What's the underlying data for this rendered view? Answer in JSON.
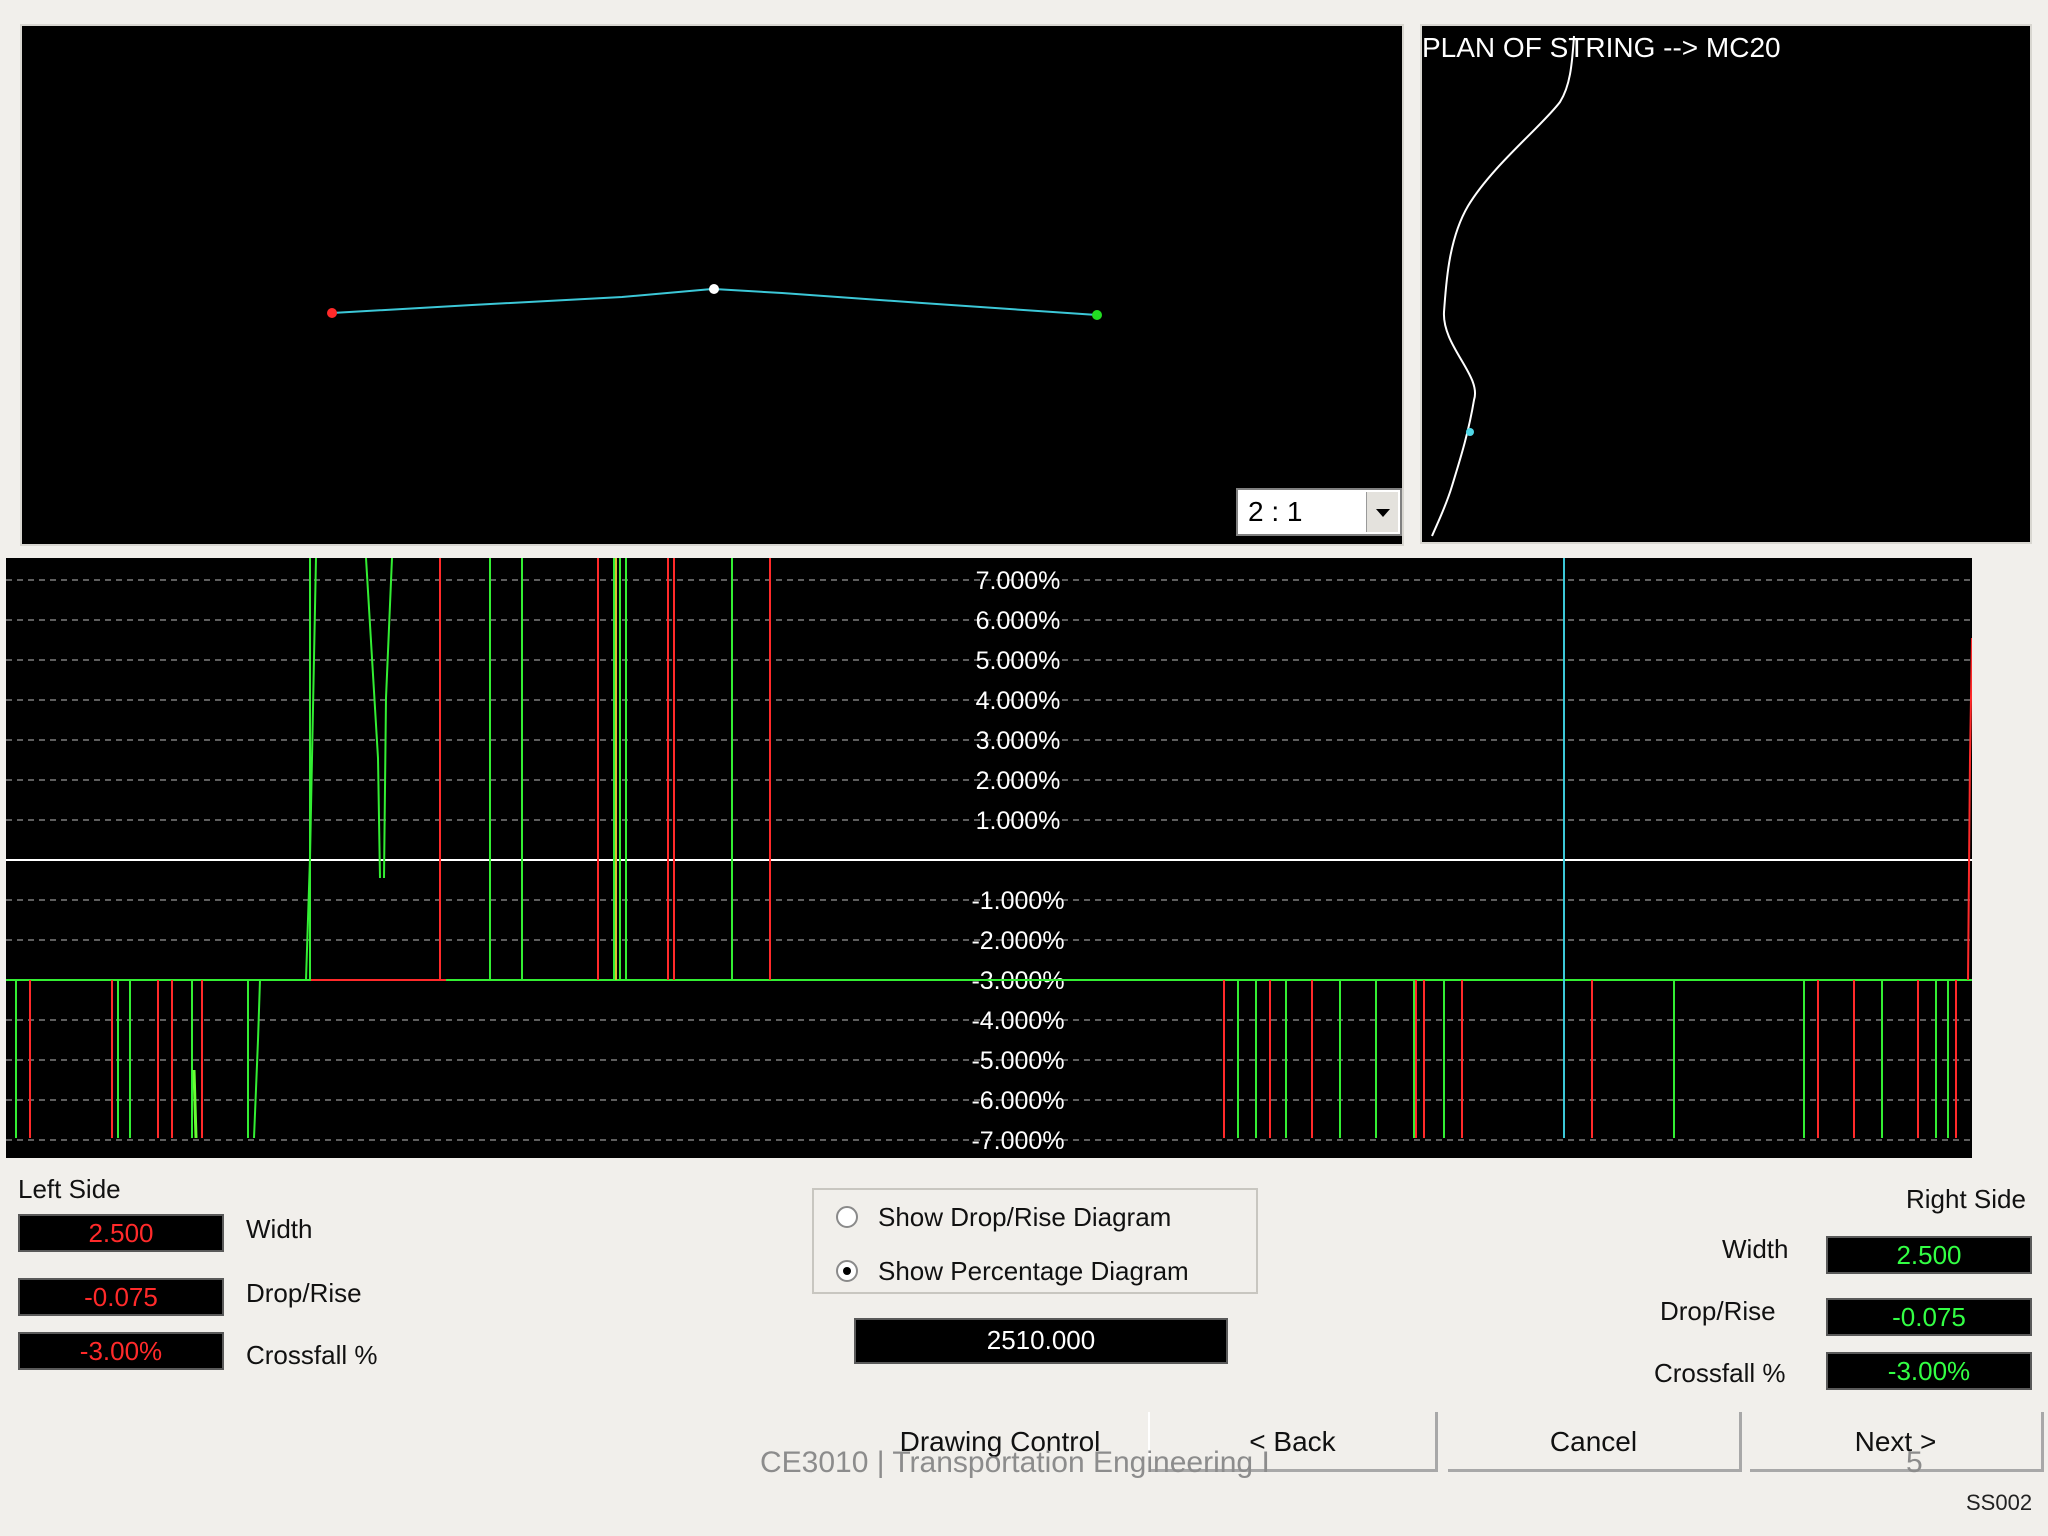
{
  "cross_section": {
    "scale_value": "2 : 1"
  },
  "plan": {
    "title": "PLAN OF STRING --> MC20"
  },
  "diagram": {
    "y_tick_labels": [
      "7.000%",
      "6.000%",
      "5.000%",
      "4.000%",
      "3.000%",
      "2.000%",
      "1.000%",
      "-1.000%",
      "-2.000%",
      "-3.000%",
      "-4.000%",
      "-5.000%",
      "-6.000%",
      "-7.000%"
    ]
  },
  "chart_data": {
    "type": "line",
    "title": "",
    "xlabel": "",
    "ylabel": "",
    "ylim": [
      -7,
      7
    ],
    "y_ticks": [
      7,
      6,
      5,
      4,
      3,
      2,
      1,
      -1,
      -2,
      -3,
      -4,
      -5,
      -6,
      -7
    ],
    "y_tick_labels": [
      "7.000%",
      "6.000%",
      "5.000%",
      "4.000%",
      "3.000%",
      "2.000%",
      "1.000%",
      "-1.000%",
      "-2.000%",
      "-3.000%",
      "-4.000%",
      "-5.000%",
      "-6.000%",
      "-7.000%"
    ],
    "grid": true,
    "series": [
      {
        "color": "#ff2a2a",
        "baseline": -3.0
      },
      {
        "color": "#33ee33",
        "baseline": -3.0
      }
    ]
  },
  "left_side": {
    "heading": "Left Side",
    "width_label": "Width",
    "width_value": "2.500",
    "drop_rise_label": "Drop/Rise",
    "drop_rise_value": "-0.075",
    "crossfall_label": "Crossfall %",
    "crossfall_value": "-3.00%"
  },
  "right_side": {
    "heading": "Right Side",
    "width_label": "Width",
    "width_value": "2.500",
    "drop_rise_label": "Drop/Rise",
    "drop_rise_value": "-0.075",
    "crossfall_label": "Crossfall %",
    "crossfall_value": "-3.00%"
  },
  "options": {
    "drop_rise_label": "Show Drop/Rise Diagram",
    "percentage_label": "Show Percentage Diagram",
    "selected": "percentage"
  },
  "chainage": "2510.000",
  "buttons": {
    "drawing_control": "Drawing Control",
    "back": "< Back",
    "cancel": "Cancel",
    "next": "Next >"
  },
  "footer": {
    "course": "CE3010 | Transportation Engineering I",
    "page": "5",
    "code": "SS002"
  },
  "colors": {
    "left_values": "#ff2a2a",
    "right_values": "#33ff44",
    "cross_section_line": "#3cc8d8"
  }
}
